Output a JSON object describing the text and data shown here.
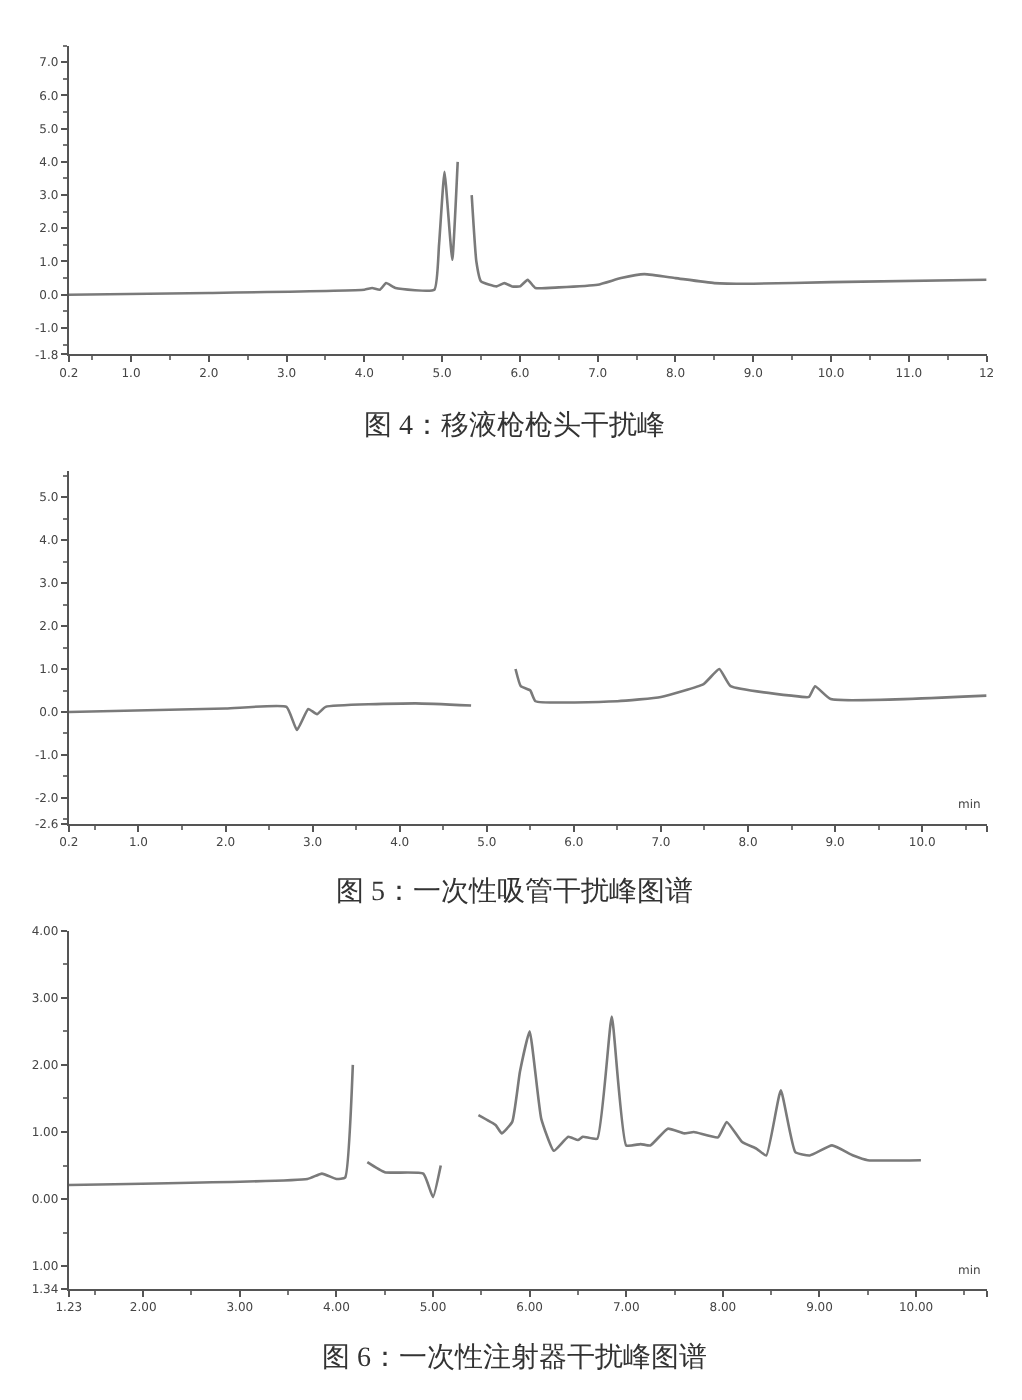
{
  "chart_data": [
    {
      "type": "line",
      "title": "图 4：移液枪枪头干扰峰",
      "color": "#7a7a7a",
      "marker": "none",
      "line_style": "solid",
      "x": [
        0.2,
        2.0,
        4.0,
        4.1,
        4.2,
        4.28,
        4.4,
        4.9,
        4.96,
        5.03,
        5.13,
        5.2,
        5.22,
        5.3,
        5.38,
        5.44,
        5.5,
        5.7,
        5.8,
        5.9,
        6.0,
        6.1,
        6.2,
        6.5,
        7.0,
        7.3,
        7.6,
        8.0,
        8.5,
        9.0,
        10.0,
        12.0
      ],
      "values": [
        0.0,
        0.05,
        0.15,
        0.2,
        0.15,
        0.35,
        0.2,
        0.15,
        1.5,
        3.7,
        1.05,
        4.0,
        null,
        null,
        3.0,
        1.0,
        0.4,
        0.25,
        0.35,
        0.25,
        0.25,
        0.45,
        0.2,
        0.22,
        0.3,
        0.5,
        0.62,
        0.5,
        0.35,
        0.33,
        0.38,
        0.45
      ],
      "xlim": [
        0.2,
        12.0
      ],
      "xticks": [
        0.2,
        {
          "value": 1,
          "label": "1.0"
        },
        {
          "value": 2,
          "label": "2.0"
        },
        {
          "value": 3,
          "label": "3.0"
        },
        {
          "value": 4,
          "label": "4.0"
        },
        {
          "value": 5,
          "label": "5.0"
        },
        {
          "value": 6,
          "label": "6.0"
        },
        {
          "value": 7,
          "label": "7.0"
        },
        {
          "value": 8,
          "label": "8.0"
        },
        {
          "value": 9,
          "label": "9.0"
        },
        {
          "value": 10,
          "label": "10.0"
        },
        {
          "value": 11,
          "label": "11.0"
        },
        12
      ],
      "ylim": [
        -1.8,
        7.5
      ],
      "yticks": [
        -1.8,
        {
          "value": -1,
          "label": "-1.0"
        },
        {
          "value": 0,
          "label": "0.0"
        },
        {
          "value": 1,
          "label": "1.0"
        },
        {
          "value": 2,
          "label": "2.0"
        },
        {
          "value": 3,
          "label": "3.0"
        },
        {
          "value": 4,
          "label": "4.0"
        },
        {
          "value": 5,
          "label": "5.0"
        },
        {
          "value": 6,
          "label": "6.0"
        },
        {
          "value": 7,
          "label": "7.0"
        }
      ]
    },
    {
      "type": "line",
      "title": "图 5：一次性吸管干扰峰图谱",
      "color": "#7a7a7a",
      "marker": "none",
      "line_style": "solid",
      "annotations": [
        "min"
      ],
      "x": [
        0.2,
        2.0,
        2.7,
        2.82,
        2.95,
        3.05,
        3.15,
        4.18,
        4.82,
        4.9,
        5.05,
        5.16,
        5.26,
        5.33,
        5.39,
        5.5,
        5.56,
        6.5,
        7.0,
        7.49,
        7.67,
        7.8,
        8.5,
        8.7,
        8.77,
        8.95,
        10.74
      ],
      "values": [
        0.0,
        0.08,
        0.12,
        -0.42,
        0.07,
        -0.05,
        0.12,
        0.2,
        0.15,
        null,
        null,
        null,
        null,
        1.0,
        0.6,
        0.5,
        0.25,
        0.25,
        0.35,
        0.65,
        1.0,
        0.6,
        0.38,
        0.35,
        0.6,
        0.3,
        0.38
      ],
      "xlim": [
        0.2,
        10.74
      ],
      "xticks": [
        0.2,
        {
          "value": 1,
          "label": "1.0"
        },
        {
          "value": 2,
          "label": "2.0"
        },
        {
          "value": 3,
          "label": "3.0"
        },
        {
          "value": 4,
          "label": "4.0"
        },
        {
          "value": 5,
          "label": "5.0"
        },
        {
          "value": 6,
          "label": "6.0"
        },
        {
          "value": 7,
          "label": "7.0"
        },
        {
          "value": 8,
          "label": "8.0"
        },
        {
          "value": 9,
          "label": "9.0"
        },
        {
          "value": 10,
          "label": "10.0"
        },
        {
          "value": 10.74,
          "label": null
        }
      ],
      "ylim": [
        -2.6,
        5.6
      ],
      "yticks": [
        -2.6,
        {
          "value": -2,
          "label": "-2.0"
        },
        {
          "value": -1,
          "label": "-1.0"
        },
        {
          "value": 0,
          "label": "0.0"
        },
        {
          "value": 1,
          "label": "1.0"
        },
        {
          "value": 2,
          "label": "2.0"
        },
        {
          "value": 3,
          "label": "3.0"
        },
        {
          "value": 4,
          "label": "4.0"
        },
        {
          "value": 5,
          "label": "5.0"
        }
      ]
    },
    {
      "type": "line",
      "title": "图 6：一次性注射器干扰峰图谱",
      "color": "#7a7a7a",
      "marker": "none",
      "line_style": "solid",
      "annotations": [
        "min"
      ],
      "x": [
        1.23,
        3.7,
        3.85,
        4.0,
        4.09,
        4.17,
        4.21,
        4.26,
        4.32,
        4.5,
        4.9,
        5.0,
        5.08,
        5.14,
        5.36,
        5.47,
        5.65,
        5.71,
        5.82,
        5.9,
        6.0,
        6.12,
        6.25,
        6.4,
        6.5,
        6.55,
        6.7,
        6.85,
        7.0,
        7.15,
        7.25,
        7.43,
        7.6,
        7.7,
        7.95,
        8.04,
        8.2,
        8.35,
        8.45,
        8.6,
        8.75,
        8.9,
        9.13,
        9.35,
        9.5,
        10.05
      ],
      "values": [
        0.21,
        0.3,
        0.38,
        0.3,
        0.32,
        2.0,
        null,
        null,
        0.55,
        0.4,
        0.38,
        0.03,
        0.5,
        null,
        null,
        1.25,
        1.1,
        0.98,
        1.15,
        1.9,
        2.5,
        1.2,
        0.72,
        0.93,
        0.88,
        0.93,
        0.9,
        2.72,
        0.8,
        0.82,
        0.8,
        1.05,
        0.98,
        1.0,
        0.92,
        1.15,
        0.85,
        0.75,
        0.65,
        1.62,
        0.7,
        0.65,
        0.8,
        0.65,
        0.58,
        0.58
      ],
      "xlim": [
        1.23,
        10.73
      ],
      "xticks": [
        1.23,
        {
          "value": 2.0,
          "label": "2.00"
        },
        {
          "value": 3.0,
          "label": "3.00"
        },
        {
          "value": 4.0,
          "label": "4.00"
        },
        {
          "value": 5.0,
          "label": "5.00"
        },
        {
          "value": 6.0,
          "label": "6.00"
        },
        {
          "value": 7.0,
          "label": "7.00"
        },
        {
          "value": 8.0,
          "label": "8.00"
        },
        {
          "value": 9.0,
          "label": "9.00"
        },
        {
          "value": 10.0,
          "label": "10.00"
        },
        {
          "value": 10.73,
          "label": null
        }
      ],
      "ylim": [
        -1.34,
        4.0
      ],
      "yticks": [
        {
          "value": -1.34,
          "label": "1.34"
        },
        {
          "value": -1.0,
          "label": "1.00"
        },
        {
          "value": 0.0,
          "label": "0.00"
        },
        {
          "value": 1.0,
          "label": "1.00"
        },
        {
          "value": 2.0,
          "label": "2.00"
        },
        {
          "value": 3.0,
          "label": "3.00"
        },
        {
          "value": 4.0,
          "label": "4.00"
        }
      ]
    }
  ]
}
